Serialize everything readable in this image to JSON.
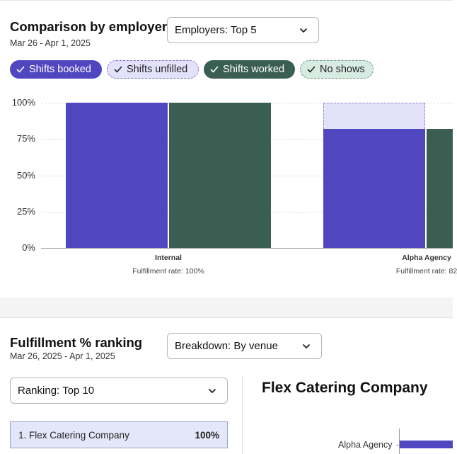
{
  "employer_section": {
    "title": "Comparison by employer",
    "date_range": "Mar 26 - Apr 1, 2025",
    "filter_select": {
      "value": "Employers: Top 5",
      "icon": "chevron-down-icon"
    },
    "legend_chips": [
      {
        "label": "Shifts booked",
        "color": "#5046c0",
        "selected": true
      },
      {
        "label": "Shifts unfilled",
        "color": "#e4e2fb",
        "selected": true
      },
      {
        "label": "Shifts worked",
        "color": "#3a5f52",
        "selected": true
      },
      {
        "label": "No shows",
        "color": "#d7ebe3",
        "selected": true
      }
    ]
  },
  "chart_data": {
    "type": "bar",
    "categories": [
      "Internal",
      "Alpha Agency"
    ],
    "category_subtitles": [
      "Fulfillment rate: 100%",
      "Fulfillment rate: 82"
    ],
    "series": [
      {
        "name": "Shifts booked",
        "values": [
          100,
          82
        ],
        "color": "#5046c0"
      },
      {
        "name": "Shifts unfilled",
        "values": [
          0,
          18
        ],
        "color": "#e4e2fb"
      },
      {
        "name": "Shifts worked",
        "values": [
          100,
          82
        ],
        "color": "#3a5f52"
      }
    ],
    "y_ticks": [
      "100%",
      "75%",
      "50%",
      "25%",
      "0%"
    ],
    "ylim": [
      0,
      100
    ],
    "stacked_series": [
      "Shifts booked",
      "Shifts unfilled"
    ],
    "grid": true
  },
  "ranking_section": {
    "title": "Fulfillment % ranking",
    "date_range": "Mar 26, 2025 - Apr 1, 2025",
    "breakdown_select": {
      "value": "Breakdown: By venue",
      "icon": "chevron-down-icon"
    },
    "ranking_select": {
      "value": "Ranking: Top 10",
      "icon": "chevron-down-icon"
    },
    "items": [
      {
        "label": "1. Flex Catering Company",
        "value": "100%"
      }
    ],
    "detail": {
      "title": "Flex Catering Company",
      "bars": [
        {
          "label": "Alpha Agency"
        }
      ]
    }
  }
}
